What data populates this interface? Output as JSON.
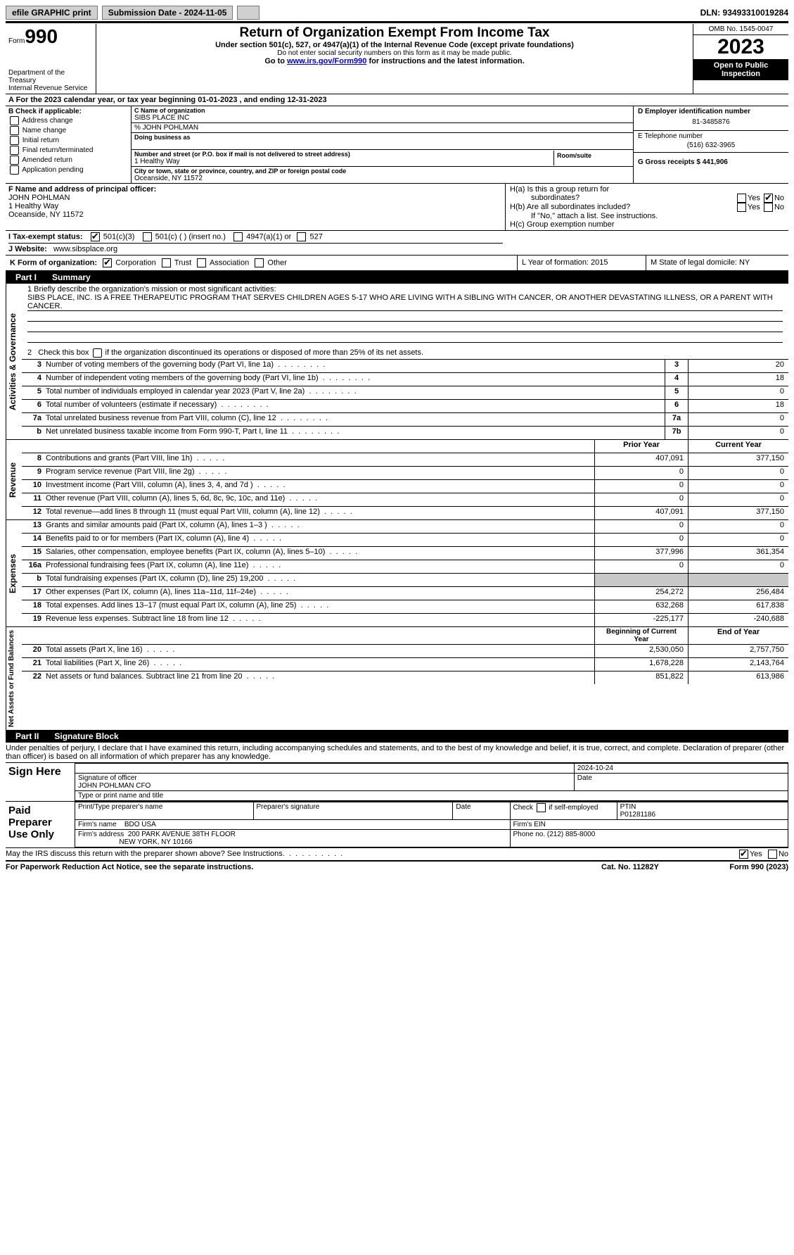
{
  "topbar": {
    "efile_label": "efile GRAPHIC print",
    "submission_label": "Submission Date - 2024-11-05",
    "dln_label": "DLN: 93493310019284"
  },
  "header": {
    "form_prefix": "Form",
    "form_number": "990",
    "dept": "Department of the Treasury",
    "irs": "Internal Revenue Service",
    "title": "Return of Organization Exempt From Income Tax",
    "subtitle": "Under section 501(c), 527, or 4947(a)(1) of the Internal Revenue Code (except private foundations)",
    "warn": "Do not enter social security numbers on this form as it may be made public.",
    "goto_pre": "Go to ",
    "goto_link": "www.irs.gov/Form990",
    "goto_post": " for instructions and the latest information.",
    "omb": "OMB No. 1545-0047",
    "year": "2023",
    "inspect1": "Open to Public",
    "inspect2": "Inspection"
  },
  "rowA": "A For the 2023 calendar year, or tax year beginning 01-01-2023    , and ending 12-31-2023",
  "boxB": {
    "title": "B Check if applicable:",
    "items": [
      "Address change",
      "Name change",
      "Initial return",
      "Final return/terminated",
      "Amended return",
      "Application pending"
    ]
  },
  "boxC": {
    "name_lbl": "C Name of organization",
    "name": "SIBS PLACE INC",
    "care_of": "% JOHN POHLMAN",
    "dba_lbl": "Doing business as",
    "street_lbl": "Number and street (or P.O. box if mail is not delivered to street address)",
    "room_lbl": "Room/suite",
    "street": "1 Healthy Way",
    "city_lbl": "City or town, state or province, country, and ZIP or foreign postal code",
    "city": "Oceanside, NY  11572"
  },
  "boxD": {
    "ein_lbl": "D Employer identification number",
    "ein": "81-3485876",
    "phone_lbl": "E Telephone number",
    "phone": "(516) 632-3965",
    "gross_lbl": "G Gross receipts $ 441,906"
  },
  "boxF": {
    "lbl": "F  Name and address of principal officer:",
    "name": "JOHN POHLMAN",
    "street": "1 Healthy Way",
    "city": "Oceanside, NY  11572"
  },
  "boxH": {
    "ha_lbl": "H(a)  Is this a group return for",
    "ha_sub": "subordinates?",
    "hb_lbl": "H(b)  Are all subordinates included?",
    "hb_note": "If \"No,\" attach a list. See instructions.",
    "hc_lbl": "H(c)  Group exemption number",
    "yes": "Yes",
    "no": "No"
  },
  "taxI": {
    "lbl": "I    Tax-exempt status:",
    "c3": "501(c)(3)",
    "c_other": "501(c) (  ) (insert no.)",
    "c4947": "4947(a)(1) or",
    "c527": "527"
  },
  "rowJ": {
    "lbl": "J   Website:",
    "val": "www.sibsplace.org"
  },
  "rowK": {
    "lbl": "K Form of organization:",
    "corp": "Corporation",
    "trust": "Trust",
    "assoc": "Association",
    "other": "Other"
  },
  "rowL": {
    "lbl": "L Year of formation: 2015"
  },
  "rowM": {
    "lbl": "M State of legal domicile: NY"
  },
  "part1": {
    "tab": "Part I",
    "title": "Summary"
  },
  "mission": {
    "lbl": "1   Briefly describe the organization's mission or most significant activities:",
    "text": "SIBS PLACE, INC. IS A FREE THERAPEUTIC PROGRAM THAT SERVES CHILDREN AGES 5-17 WHO ARE LIVING WITH A SIBLING WITH CANCER, OR ANOTHER DEVASTATING ILLNESS, OR A PARENT WITH CANCER."
  },
  "line2": "2    Check this box      if the organization discontinued its operations or disposed of more than 25% of its net assets.",
  "activities": {
    "section_label": "Activities & Governance",
    "rows": [
      {
        "n": "3",
        "d": "Number of voting members of the governing body (Part VI, line 1a)",
        "box": "3",
        "v": "20"
      },
      {
        "n": "4",
        "d": "Number of independent voting members of the governing body (Part VI, line 1b)",
        "box": "4",
        "v": "18"
      },
      {
        "n": "5",
        "d": "Total number of individuals employed in calendar year 2023 (Part V, line 2a)",
        "box": "5",
        "v": "0"
      },
      {
        "n": "6",
        "d": "Total number of volunteers (estimate if necessary)",
        "box": "6",
        "v": "18"
      },
      {
        "n": "7a",
        "d": "Total unrelated business revenue from Part VIII, column (C), line 12",
        "box": "7a",
        "v": "0"
      },
      {
        "n": "b",
        "d": "Net unrelated business taxable income from Form 990-T, Part I, line 11",
        "box": "7b",
        "v": "0"
      }
    ]
  },
  "revenue": {
    "section_label": "Revenue",
    "head_prior": "Prior Year",
    "head_current": "Current Year",
    "rows": [
      {
        "n": "8",
        "d": "Contributions and grants (Part VIII, line 1h)",
        "p": "407,091",
        "c": "377,150"
      },
      {
        "n": "9",
        "d": "Program service revenue (Part VIII, line 2g)",
        "p": "0",
        "c": "0"
      },
      {
        "n": "10",
        "d": "Investment income (Part VIII, column (A), lines 3, 4, and 7d )",
        "p": "0",
        "c": "0"
      },
      {
        "n": "11",
        "d": "Other revenue (Part VIII, column (A), lines 5, 6d, 8c, 9c, 10c, and 11e)",
        "p": "0",
        "c": "0"
      },
      {
        "n": "12",
        "d": "Total revenue—add lines 8 through 11 (must equal Part VIII, column (A), line 12)",
        "p": "407,091",
        "c": "377,150"
      }
    ]
  },
  "expenses": {
    "section_label": "Expenses",
    "rows": [
      {
        "n": "13",
        "d": "Grants and similar amounts paid (Part IX, column (A), lines 1–3 )",
        "p": "0",
        "c": "0"
      },
      {
        "n": "14",
        "d": "Benefits paid to or for members (Part IX, column (A), line 4)",
        "p": "0",
        "c": "0"
      },
      {
        "n": "15",
        "d": "Salaries, other compensation, employee benefits (Part IX, column (A), lines 5–10)",
        "p": "377,996",
        "c": "361,354"
      },
      {
        "n": "16a",
        "d": "Professional fundraising fees (Part IX, column (A), line 11e)",
        "p": "0",
        "c": "0"
      },
      {
        "n": "b",
        "d": "Total fundraising expenses (Part IX, column (D), line 25) 19,200",
        "p": "",
        "c": "",
        "shade": true
      },
      {
        "n": "17",
        "d": "Other expenses (Part IX, column (A), lines 11a–11d, 11f–24e)",
        "p": "254,272",
        "c": "256,484"
      },
      {
        "n": "18",
        "d": "Total expenses. Add lines 13–17 (must equal Part IX, column (A), line 25)",
        "p": "632,268",
        "c": "617,838"
      },
      {
        "n": "19",
        "d": "Revenue less expenses. Subtract line 18 from line 12",
        "p": "-225,177",
        "c": "-240,688"
      }
    ]
  },
  "netassets": {
    "section_label": "Net Assets or Fund Balances",
    "head_begin": "Beginning of Current Year",
    "head_end": "End of Year",
    "rows": [
      {
        "n": "20",
        "d": "Total assets (Part X, line 16)",
        "p": "2,530,050",
        "c": "2,757,750"
      },
      {
        "n": "21",
        "d": "Total liabilities (Part X, line 26)",
        "p": "1,678,228",
        "c": "2,143,764"
      },
      {
        "n": "22",
        "d": "Net assets or fund balances. Subtract line 21 from line 20",
        "p": "851,822",
        "c": "613,986"
      }
    ]
  },
  "part2": {
    "tab": "Part II",
    "title": "Signature Block"
  },
  "perjury": "Under penalties of perjury, I declare that I have examined this return, including accompanying schedules and statements, and to the best of my knowledge and belief, it is true, correct, and complete. Declaration of preparer (other than officer) is based on all information of which preparer has any knowledge.",
  "sign": {
    "here": "Sign Here",
    "date": "2024-10-24",
    "sig_lbl": "Signature of officer",
    "officer": "JOHN POHLMAN  CFO",
    "type_lbl": "Type or print name and title",
    "date_lbl": "Date"
  },
  "paid": {
    "lbl": "Paid Preparer Use Only",
    "print_lbl": "Print/Type preparer's name",
    "sig_lbl": "Preparer's signature",
    "date_lbl": "Date",
    "check_lbl": "Check       if self-employed",
    "ptin_lbl": "PTIN",
    "ptin": "P01281186",
    "firm_name_lbl": "Firm's name",
    "firm_name": "BDO USA",
    "firm_ein_lbl": "Firm's EIN",
    "firm_addr_lbl": "Firm's address",
    "firm_addr1": "200 PARK AVENUE 38TH FLOOR",
    "firm_addr2": "NEW YORK, NY  10166",
    "phone_lbl": "Phone no. (212) 885-8000"
  },
  "discuss": "May the IRS discuss this return with the preparer shown above? See Instructions.",
  "footer": {
    "left": "For Paperwork Reduction Act Notice, see the separate instructions.",
    "mid": "Cat. No. 11282Y",
    "right": "Form 990 (2023)"
  }
}
